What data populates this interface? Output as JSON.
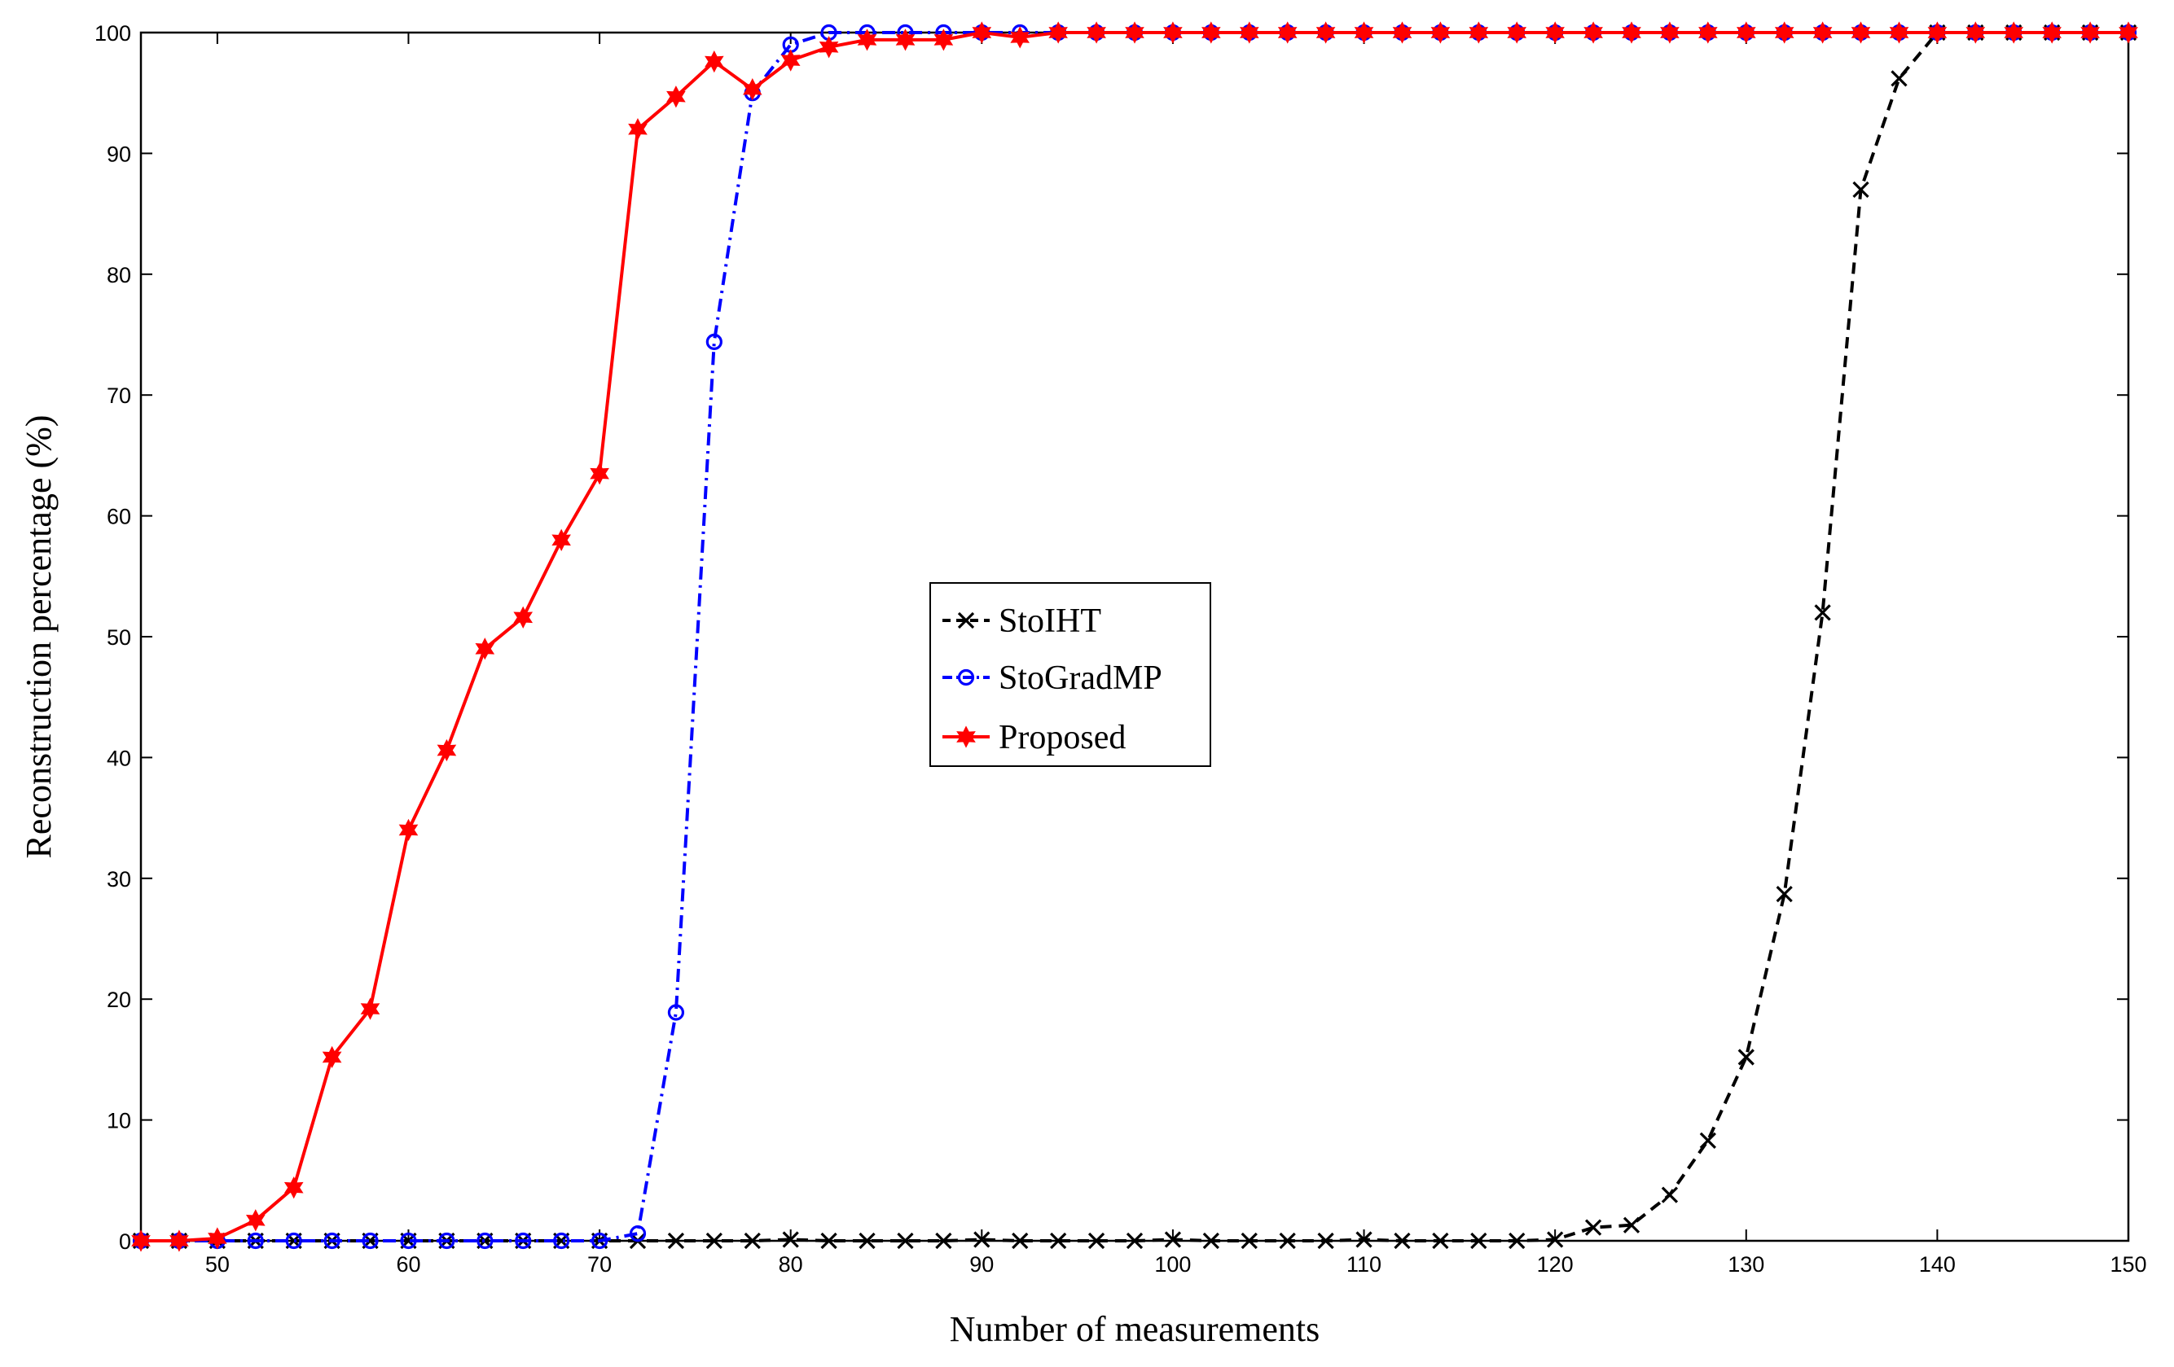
{
  "chart_data": {
    "type": "line",
    "xlabel": "Number of measurements",
    "ylabel": "Reconstruction percentage (%)",
    "xlim": [
      46,
      150
    ],
    "ylim": [
      0,
      100
    ],
    "xticks": [
      50,
      60,
      70,
      80,
      90,
      100,
      110,
      120,
      130,
      140,
      150
    ],
    "yticks": [
      0,
      10,
      20,
      30,
      40,
      50,
      60,
      70,
      80,
      90,
      100
    ],
    "grid": false,
    "legend_position": "center",
    "x": [
      46,
      48,
      50,
      52,
      54,
      56,
      58,
      60,
      62,
      64,
      66,
      68,
      70,
      72,
      74,
      76,
      78,
      80,
      82,
      84,
      86,
      88,
      90,
      92,
      94,
      96,
      98,
      100,
      102,
      104,
      106,
      108,
      110,
      112,
      114,
      116,
      118,
      120,
      122,
      124,
      126,
      128,
      130,
      132,
      134,
      136,
      138,
      140,
      142,
      144,
      146,
      148,
      150
    ],
    "series": [
      {
        "name": "StoIHT",
        "color": "#000000",
        "line_style": "dashed",
        "marker": "x",
        "values": [
          0,
          0,
          0,
          0,
          0,
          0,
          0,
          0,
          0,
          0,
          0,
          0,
          0,
          0,
          0,
          0,
          0,
          0.1,
          0,
          0,
          0,
          0,
          0.1,
          0,
          0,
          0,
          0,
          0.1,
          0,
          0,
          0,
          0,
          0.1,
          0,
          0,
          0,
          0,
          0.1,
          1.1,
          1.3,
          3.8,
          8.3,
          15.2,
          28.7,
          52.0,
          87.0,
          96.2,
          100,
          100,
          100,
          100,
          100,
          100
        ]
      },
      {
        "name": "StoGradMP",
        "color": "#0000ff",
        "line_style": "dash-dot",
        "marker": "o",
        "values": [
          0,
          0,
          0,
          0,
          0,
          0,
          0,
          0,
          0,
          0,
          0,
          0,
          0,
          0.6,
          18.9,
          74.4,
          95.0,
          99.0,
          100,
          100,
          100,
          100,
          100,
          100,
          100,
          100,
          100,
          100,
          100,
          100,
          100,
          100,
          100,
          100,
          100,
          100,
          100,
          100,
          100,
          100,
          100,
          100,
          100,
          100,
          100,
          100,
          100,
          100,
          100,
          100,
          100,
          100,
          100
        ]
      },
      {
        "name": "Proposed",
        "color": "#ff0000",
        "line_style": "solid",
        "marker": "hexagram",
        "values": [
          0,
          0,
          0.2,
          1.7,
          4.4,
          15.2,
          19.2,
          34.0,
          40.6,
          49.0,
          51.6,
          58.0,
          63.5,
          92.0,
          94.7,
          97.6,
          95.3,
          97.7,
          98.8,
          99.4,
          99.4,
          99.4,
          100,
          99.6,
          100,
          100,
          100,
          100,
          100,
          100,
          100,
          100,
          100,
          100,
          100,
          100,
          100,
          100,
          100,
          100,
          100,
          100,
          100,
          100,
          100,
          100,
          100,
          100,
          100,
          100,
          100,
          100,
          100
        ]
      }
    ]
  }
}
